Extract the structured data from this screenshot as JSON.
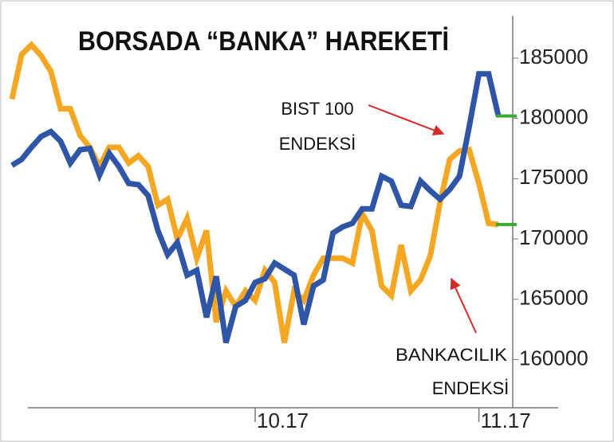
{
  "chart_data": {
    "type": "line",
    "title": "BORSADA “BANKA” HAREKETİ",
    "annotations": [
      {
        "lines": [
          "BIST 100",
          "ENDEKSİ"
        ]
      },
      {
        "lines": [
          "BANKACILIK",
          "ENDEKSİ"
        ]
      }
    ],
    "categories": [
      null,
      null,
      null,
      null,
      null,
      null,
      null,
      null,
      null,
      null,
      null,
      null,
      null,
      null,
      null,
      null,
      null,
      null,
      null,
      null,
      null,
      null,
      null,
      null,
      null,
      "10.17",
      null,
      null,
      null,
      null,
      null,
      null,
      null,
      null,
      null,
      null,
      null,
      null,
      null,
      null,
      null,
      null,
      null,
      null,
      null,
      null,
      null,
      null,
      "11.17",
      null,
      null
    ],
    "series": [
      {
        "color": "#f5a623",
        "values": [
          181600,
          185300,
          186100,
          185200,
          183900,
          180800,
          180800,
          178600,
          177600,
          176000,
          177600,
          177600,
          176300,
          176900,
          176000,
          172800,
          173300,
          170000,
          171700,
          168400,
          170700,
          163100,
          165700,
          164400,
          165700,
          164900,
          167400,
          166400,
          161400,
          165700,
          164900,
          167000,
          168400,
          168400,
          168400,
          168000,
          172100,
          170700,
          166100,
          165300,
          169500,
          165700,
          166600,
          168600,
          173000,
          176600,
          177300,
          177400,
          174600,
          171300,
          171200
        ]
      },
      {
        "color": "#2e55a6",
        "values": [
          176100,
          176600,
          177600,
          178500,
          178900,
          178100,
          176300,
          177400,
          177500,
          175300,
          177100,
          176000,
          174600,
          174500,
          173600,
          170700,
          168700,
          169700,
          167000,
          167400,
          163500,
          166900,
          161400,
          164400,
          164900,
          166400,
          166700,
          168000,
          167500,
          167000,
          162900,
          166100,
          166600,
          170500,
          171000,
          171300,
          172500,
          172500,
          175200,
          174800,
          172800,
          172700,
          174800,
          174000,
          173300,
          174100,
          175200,
          179300,
          183700,
          183700,
          180200
        ]
      }
    ],
    "end_marker_color": "#3aaa35",
    "ylim": [
      156000,
      188500
    ],
    "yticks": [
      160000,
      165000,
      170000,
      175000,
      180000,
      185000
    ]
  }
}
